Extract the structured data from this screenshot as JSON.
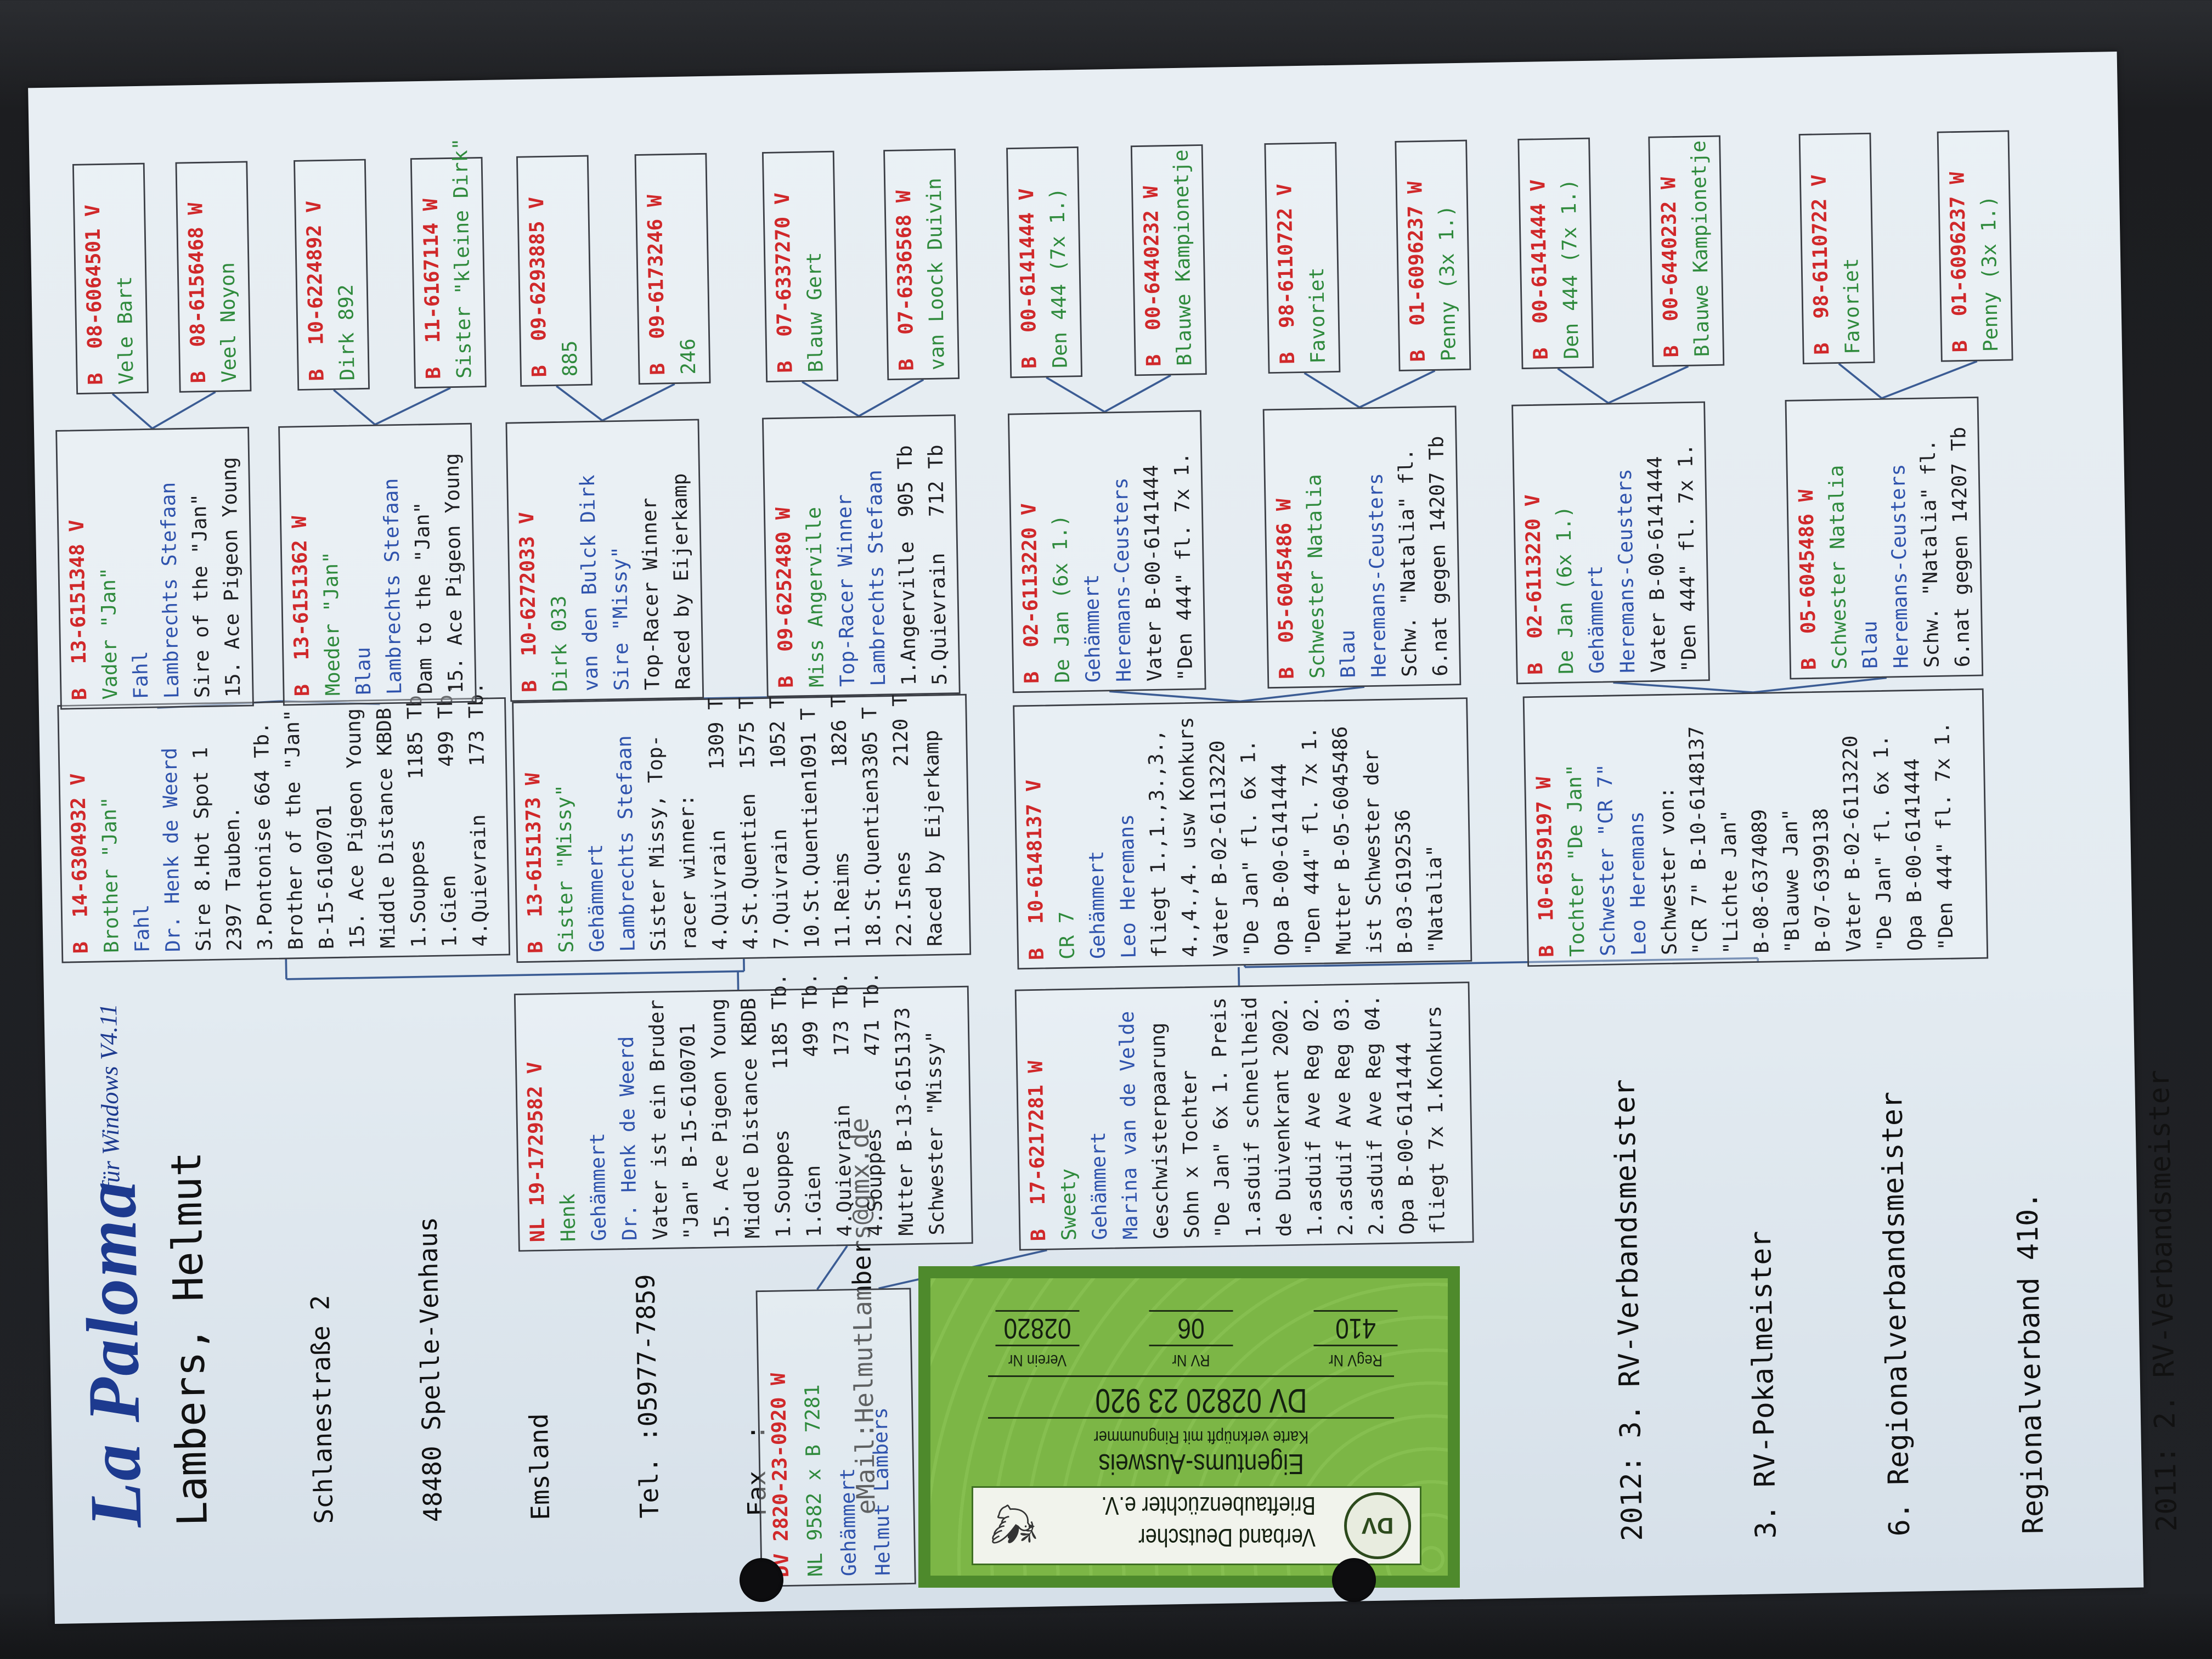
{
  "header": {
    "logo": "La Paloma",
    "logo_sub": "für Windows V4.11",
    "owner_name": "Lambers, Helmut",
    "address": [
      "Schlanestraße 2",
      "48480 Spelle-Venhaus",
      "Emsland",
      "Tel. :05977-7859",
      "Fax  :",
      "eMail:HelmutLambers@gmx.de"
    ]
  },
  "pedigree": {
    "gen1": [
      {
        "lines": [
          "DV 2820-23-0920 W",
          "NL 9582 x B 7281",
          "Gehämmert",
          "Helmut Lambers"
        ]
      }
    ],
    "gen2": [
      {
        "lines": [
          "NL 19-1729582 V",
          "Henk",
          "Gehämmert",
          "Dr. Henk de Weerd",
          "Vater ist ein Bruder",
          "\"Jan\" B-15-6100701",
          "15. Ace Pigeon Young",
          "Middle Distance KBDB",
          "1.Souppes     1185 Tb.",
          "1.Gien         499 Tb.",
          "4.Quievrain    173 Tb.",
          "4.Souppes      471 Tb.",
          "Mutter B-13-6151373",
          "Schwester \"Missy\""
        ]
      },
      {
        "lines": [
          "B  17-6217281 W",
          "Sweety",
          "Gehämmert",
          "Marina van de Velde",
          "Geschwisterpaarung",
          "Sohn x Tochter",
          "\"De Jan\" 6x 1. Preis",
          "1.asduif schnellheid",
          "de Duivenkrant 2002.",
          "1.asduif Ave Reg 02.",
          "2.asduif Ave Reg 03.",
          "2.asduif Ave Reg 04.",
          "Opa B-00-6141444",
          "fliegt 7x 1.Konkurs"
        ]
      }
    ],
    "gen3": [
      {
        "lines": [
          "B  14-6304932 V",
          "Brother \"Jan\"",
          "Fahl",
          "Dr. Henk de Weerd",
          "Sire 8.Hot Spot 1",
          "2397 Tauben.",
          "3.Pontonise 664 Tb.",
          "Brother of the \"Jan\"",
          "B-15-6100701",
          "15. Ace Pigeon Young",
          "Middle Distance KBDB",
          "1.Souppes     1185 Tb.",
          "1.Gien         499 Tb.",
          "4.Quievrain    173 Tb."
        ]
      },
      {
        "lines": [
          "B  13-6151373 W",
          "Sister \"Missy\"",
          "Gehämmert",
          "Lambrechts Stefaan",
          "Sister Missy, Top-",
          "racer winner:",
          "4.Quivrain     1309 T",
          "4.St.Quentien  1575 T",
          "7.Quivrain     1052 T",
          "10.St.Quentien1091 T",
          "11.Reims       1826 T",
          "18.St.Quentien3305 T",
          "22.Isnes       2120 T",
          "Raced by Eijerkamp"
        ]
      },
      {
        "lines": [
          "B  10-6148137 V",
          "CR 7",
          "Gehämmert",
          "Leo Heremans",
          "fliegt 1.,1.,3.,3.,",
          "4.,4.,4. usw Konkurs",
          "Vater B-02-6113220",
          "\"De Jan\" fl. 6x 1.",
          "Opa B-00-6141444",
          "\"Den 444\" fl. 7x 1.",
          "Mutter B-05-6045486",
          "ist Schwester der",
          "B-03-6192536",
          "\"Natalia\""
        ]
      },
      {
        "lines": [
          "B  10-6359197 W",
          "Tochter \"De Jan\"",
          "Schwester \"CR 7\"",
          "Leo Heremans",
          "Schwester von:",
          "\"CR 7\" B-10-6148137",
          "\"Lichte Jan\"",
          "B-08-6374089",
          "\"Blauwe Jan\"",
          "B-07-6399138",
          "Vater B-02-6113220",
          "\"De Jan\" fl. 6x 1.",
          "Opa B-00-6141444",
          "\"Den 444\" fl. 7x 1."
        ]
      }
    ],
    "gen4": [
      {
        "lines": [
          "B  13-6151348 V",
          "Vader \"Jan\"",
          "Fahl",
          "Lambrechts Stefaan",
          "Sire of the \"Jan\"",
          "15. Ace Pigeon Young"
        ]
      },
      {
        "lines": [
          "B  13-6151362 W",
          "Moeder \"Jan\"",
          "Blau",
          "Lambrechts Stefaan",
          "Dam to the \"Jan\"",
          "15. Ace Pigeon Young"
        ]
      },
      {
        "lines": [
          "B  10-6272033 V",
          "Dirk 033",
          "van den Bulck Dirk",
          "Sire \"Missy\"",
          "Top-Racer Winner",
          "Raced by Eijerkamp"
        ]
      },
      {
        "lines": [
          "B  09-6252480 W",
          "Miss Angerville",
          "Top-Racer Winner",
          "Lambrechts Stefaan",
          "1.Angerville  905 Tb",
          "5.Quievrain   712 Tb"
        ]
      },
      {
        "lines": [
          "B  02-6113220 V",
          "De Jan (6x 1.)",
          "Gehämmert",
          "Heremans-Ceusters",
          "Vater B-00-6141444",
          "\"Den 444\" fl. 7x 1."
        ]
      },
      {
        "lines": [
          "B  05-6045486 W",
          "Schwester Natalia",
          "Blau",
          "Heremans-Ceusters",
          "Schw. \"Natalia\" fl.",
          "6.nat gegen 14207 Tb"
        ]
      },
      {
        "lines": [
          "B  02-6113220 V",
          "De Jan (6x 1.)",
          "Gehämmert",
          "Heremans-Ceusters",
          "Vater B-00-6141444",
          "\"Den 444\" fl. 7x 1."
        ]
      },
      {
        "lines": [
          "B  05-6045486 W",
          "Schwester Natalia",
          "Blau",
          "Heremans-Ceusters",
          "Schw. \"Natalia\" fl.",
          "6.nat gegen 14207 Tb"
        ]
      }
    ],
    "gen5": [
      {
        "lines": [
          "B  08-6064501 V",
          "Vele Bart"
        ]
      },
      {
        "lines": [
          "B  08-6156468 W",
          "Veel Noyon"
        ]
      },
      {
        "lines": [
          "B  10-6224892 V",
          "Dirk 892"
        ]
      },
      {
        "lines": [
          "B  11-6167114 W",
          "Sister \"kleine Dirk\""
        ]
      },
      {
        "lines": [
          "B  09-6293885 V",
          "885"
        ]
      },
      {
        "lines": [
          "B  09-6173246 W",
          "246"
        ]
      },
      {
        "lines": [
          "B  07-6337270 V",
          "Blauw Gert"
        ]
      },
      {
        "lines": [
          "B  07-6336568 W",
          "van Loock Duivin"
        ]
      },
      {
        "lines": [
          "B  00-6141444 V",
          "Den 444 (7x 1.)"
        ]
      },
      {
        "lines": [
          "B  00-6440232 W",
          "Blauwe Kampionetje"
        ]
      },
      {
        "lines": [
          "B  98-6110722 V",
          "Favoriet"
        ]
      },
      {
        "lines": [
          "B  01-6096237 W",
          "Penny (3x 1.)"
        ]
      },
      {
        "lines": [
          "B  00-6141444 V",
          "Den 444 (7x 1.)"
        ]
      },
      {
        "lines": [
          "B  00-6440232 W",
          "Blauwe Kampionetje"
        ]
      },
      {
        "lines": [
          "B  98-6110722 V",
          "Favoriet"
        ]
      },
      {
        "lines": [
          "B  01-6096237 W",
          "Penny (3x 1.)"
        ]
      }
    ]
  },
  "achievements": [
    "2012: 3. RV-Verbandsmeister",
    "3. RV-Pokalmeister",
    "6. Regionalverbandsmeister",
    "Regionalverband 410.",
    "2011: 2. RV-Verbandsmeister"
  ],
  "card": {
    "seal": "DV",
    "org_line1": "Verband Deutscher",
    "org_line2": "Brieftaubenzüchter e.V.",
    "title": "Eigentums-Ausweis",
    "subtitle": "Karte verknüpft mit Ringnummer",
    "ring_number": "DV 02820 23 920",
    "fields": [
      {
        "label": "RegV Nr",
        "value": "410"
      },
      {
        "label": "RV Nr",
        "value": "06"
      },
      {
        "label": "Verein Nr",
        "value": "02820"
      }
    ],
    "pigeon_icon": "pigeon-icon"
  },
  "colors": {
    "ring_number": "#d0282a",
    "pigeon_name": "#2f8a3c",
    "breeder": "#2f53ad",
    "card_green": "#4e8a2c",
    "connector": "#3b5c94"
  }
}
